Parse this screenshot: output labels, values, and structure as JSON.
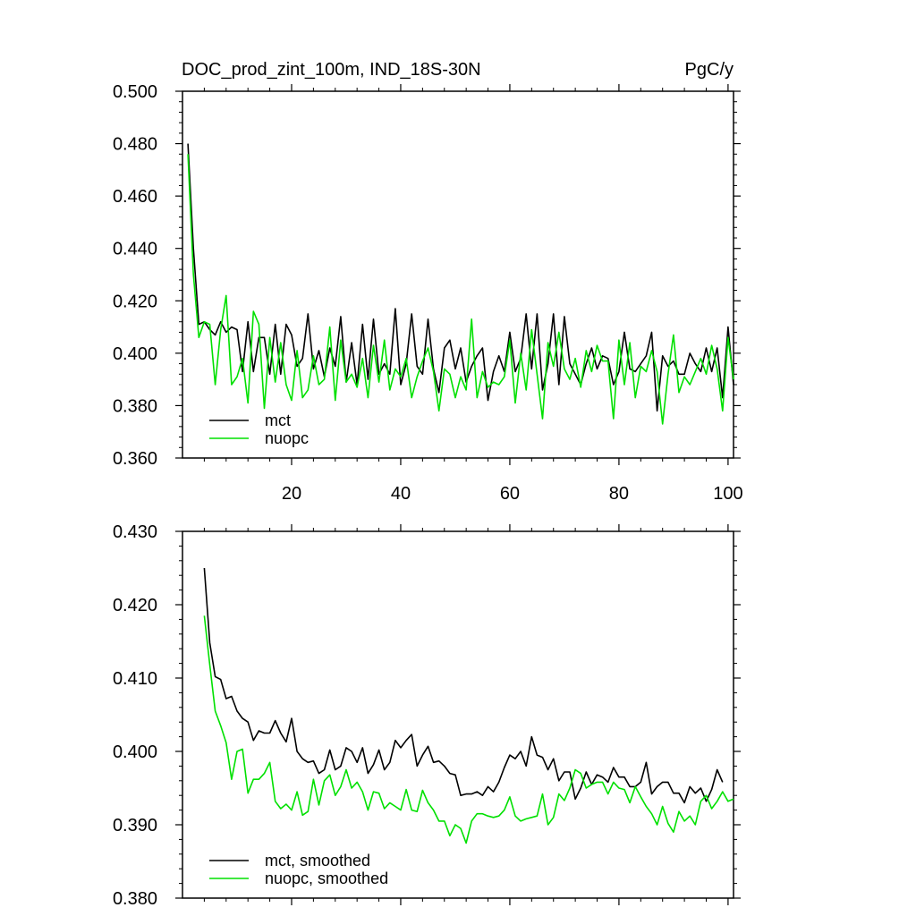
{
  "header": {
    "title": "DOC_prod_zint_100m, IND_18S-30N",
    "units": "PgC/y"
  },
  "colors": {
    "mct": "#000000",
    "nuopc": "#00e000",
    "axes": "#000000"
  },
  "chart_data": [
    {
      "type": "line",
      "title": "DOC_prod_zint_100m, IND_18S-30N",
      "units_label": "PgC/y",
      "xlabel": "",
      "ylabel": "",
      "xlim": [
        0,
        101
      ],
      "ylim": [
        0.36,
        0.5
      ],
      "yticks": [
        0.36,
        0.38,
        0.4,
        0.42,
        0.44,
        0.46,
        0.48,
        0.5
      ],
      "ytick_labels": [
        "0.360",
        "0.380",
        "0.400",
        "0.420",
        "0.440",
        "0.460",
        "0.480",
        "0.500"
      ],
      "xticks": [
        20,
        40,
        60,
        80,
        100
      ],
      "xtick_labels": [
        "20",
        "40",
        "60",
        "80",
        "100"
      ],
      "legend_position": "bottom-left",
      "grid": false,
      "series": [
        {
          "name": "mct",
          "x_start": 1,
          "values": [
            0.48,
            0.44,
            0.411,
            0.412,
            0.409,
            0.407,
            0.412,
            0.408,
            0.41,
            0.409,
            0.393,
            0.412,
            0.393,
            0.406,
            0.406,
            0.392,
            0.411,
            0.392,
            0.411,
            0.407,
            0.395,
            0.398,
            0.415,
            0.394,
            0.401,
            0.391,
            0.402,
            0.395,
            0.414,
            0.389,
            0.404,
            0.388,
            0.411,
            0.39,
            0.413,
            0.392,
            0.396,
            0.392,
            0.417,
            0.388,
            0.396,
            0.415,
            0.395,
            0.392,
            0.413,
            0.394,
            0.385,
            0.402,
            0.405,
            0.394,
            0.402,
            0.389,
            0.395,
            0.399,
            0.402,
            0.382,
            0.393,
            0.399,
            0.393,
            0.408,
            0.393,
            0.398,
            0.415,
            0.394,
            0.415,
            0.386,
            0.396,
            0.415,
            0.388,
            0.414,
            0.396,
            0.392,
            0.388,
            0.396,
            0.402,
            0.394,
            0.399,
            0.398,
            0.388,
            0.393,
            0.408,
            0.394,
            0.393,
            0.396,
            0.399,
            0.408,
            0.378,
            0.399,
            0.395,
            0.397,
            0.392,
            0.392,
            0.4,
            0.396,
            0.393,
            0.402,
            0.393,
            0.402,
            0.383,
            0.41,
            0.388
          ]
        },
        {
          "name": "nuopc",
          "x_start": 1,
          "values": [
            0.476,
            0.43,
            0.406,
            0.412,
            0.411,
            0.388,
            0.409,
            0.422,
            0.388,
            0.391,
            0.398,
            0.381,
            0.416,
            0.411,
            0.379,
            0.406,
            0.389,
            0.404,
            0.388,
            0.382,
            0.401,
            0.383,
            0.386,
            0.399,
            0.388,
            0.39,
            0.41,
            0.382,
            0.405,
            0.389,
            0.392,
            0.387,
            0.398,
            0.383,
            0.403,
            0.389,
            0.405,
            0.386,
            0.394,
            0.391,
            0.398,
            0.383,
            0.391,
            0.397,
            0.402,
            0.393,
            0.378,
            0.394,
            0.392,
            0.383,
            0.391,
            0.386,
            0.413,
            0.383,
            0.393,
            0.387,
            0.389,
            0.388,
            0.391,
            0.405,
            0.381,
            0.4,
            0.386,
            0.409,
            0.392,
            0.375,
            0.404,
            0.395,
            0.408,
            0.394,
            0.39,
            0.398,
            0.387,
            0.401,
            0.393,
            0.403,
            0.397,
            0.397,
            0.375,
            0.405,
            0.388,
            0.404,
            0.383,
            0.395,
            0.393,
            0.401,
            0.393,
            0.373,
            0.392,
            0.407,
            0.385,
            0.391,
            0.388,
            0.393,
            0.398,
            0.392,
            0.403,
            0.394,
            0.378,
            0.406,
            0.39
          ]
        }
      ]
    },
    {
      "type": "line",
      "title": "",
      "xlabel": "",
      "ylabel": "",
      "xlim": [
        0,
        101
      ],
      "ylim": [
        0.38,
        0.43
      ],
      "yticks": [
        0.38,
        0.39,
        0.4,
        0.41,
        0.42,
        0.43
      ],
      "ytick_labels": [
        "0.380",
        "0.390",
        "0.400",
        "0.410",
        "0.420",
        "0.430"
      ],
      "xticks": [
        20,
        40,
        60,
        80,
        100
      ],
      "xtick_labels": [],
      "legend_position": "bottom-left",
      "grid": false,
      "series": [
        {
          "name": "mct, smoothed",
          "x_start": 4,
          "values": [
            0.425,
            0.4148,
            0.4102,
            0.4098,
            0.4072,
            0.4075,
            0.4055,
            0.4045,
            0.404,
            0.4015,
            0.4028,
            0.4025,
            0.4025,
            0.4042,
            0.4025,
            0.4013,
            0.4045,
            0.4,
            0.399,
            0.3985,
            0.3987,
            0.397,
            0.3975,
            0.4002,
            0.3975,
            0.398,
            0.4005,
            0.4,
            0.3985,
            0.4005,
            0.397,
            0.3982,
            0.4002,
            0.3975,
            0.3985,
            0.4015,
            0.4005,
            0.4015,
            0.4023,
            0.398,
            0.3995,
            0.4007,
            0.3985,
            0.3987,
            0.398,
            0.397,
            0.3968,
            0.394,
            0.3942,
            0.3942,
            0.3945,
            0.394,
            0.3952,
            0.3945,
            0.3958,
            0.3978,
            0.3995,
            0.399,
            0.4,
            0.398,
            0.402,
            0.3995,
            0.3992,
            0.3975,
            0.399,
            0.396,
            0.3972,
            0.3972,
            0.3935,
            0.395,
            0.3972,
            0.3955,
            0.3968,
            0.3965,
            0.3958,
            0.3978,
            0.3965,
            0.3965,
            0.3952,
            0.3952,
            0.3958,
            0.3985,
            0.3942,
            0.3952,
            0.3958,
            0.3958,
            0.3943,
            0.3943,
            0.393,
            0.3952,
            0.3943,
            0.395,
            0.3932,
            0.3948,
            0.3975,
            0.3958
          ]
        },
        {
          "name": "nuopc, smoothed",
          "x_start": 4,
          "values": [
            0.4185,
            0.4118,
            0.4055,
            0.4035,
            0.4012,
            0.3962,
            0.4,
            0.4003,
            0.3943,
            0.3962,
            0.3962,
            0.397,
            0.3985,
            0.3932,
            0.3922,
            0.3928,
            0.392,
            0.3945,
            0.3913,
            0.3918,
            0.3962,
            0.3927,
            0.396,
            0.3968,
            0.394,
            0.3952,
            0.3975,
            0.395,
            0.3958,
            0.3945,
            0.392,
            0.3945,
            0.3943,
            0.3922,
            0.393,
            0.3925,
            0.392,
            0.3948,
            0.392,
            0.3918,
            0.3947,
            0.393,
            0.392,
            0.3905,
            0.3905,
            0.3885,
            0.39,
            0.3895,
            0.3875,
            0.3905,
            0.3915,
            0.3915,
            0.3912,
            0.391,
            0.3912,
            0.392,
            0.3938,
            0.3912,
            0.3905,
            0.3908,
            0.391,
            0.3912,
            0.3942,
            0.39,
            0.391,
            0.3942,
            0.3933,
            0.395,
            0.3975,
            0.397,
            0.395,
            0.3955,
            0.3958,
            0.3958,
            0.3942,
            0.3958,
            0.395,
            0.3948,
            0.393,
            0.3952,
            0.3938,
            0.3925,
            0.3915,
            0.39,
            0.3925,
            0.3902,
            0.389,
            0.3918,
            0.3905,
            0.3912,
            0.39,
            0.3932,
            0.394,
            0.3922,
            0.3932,
            0.3945,
            0.3932,
            0.3935
          ]
        }
      ]
    }
  ]
}
